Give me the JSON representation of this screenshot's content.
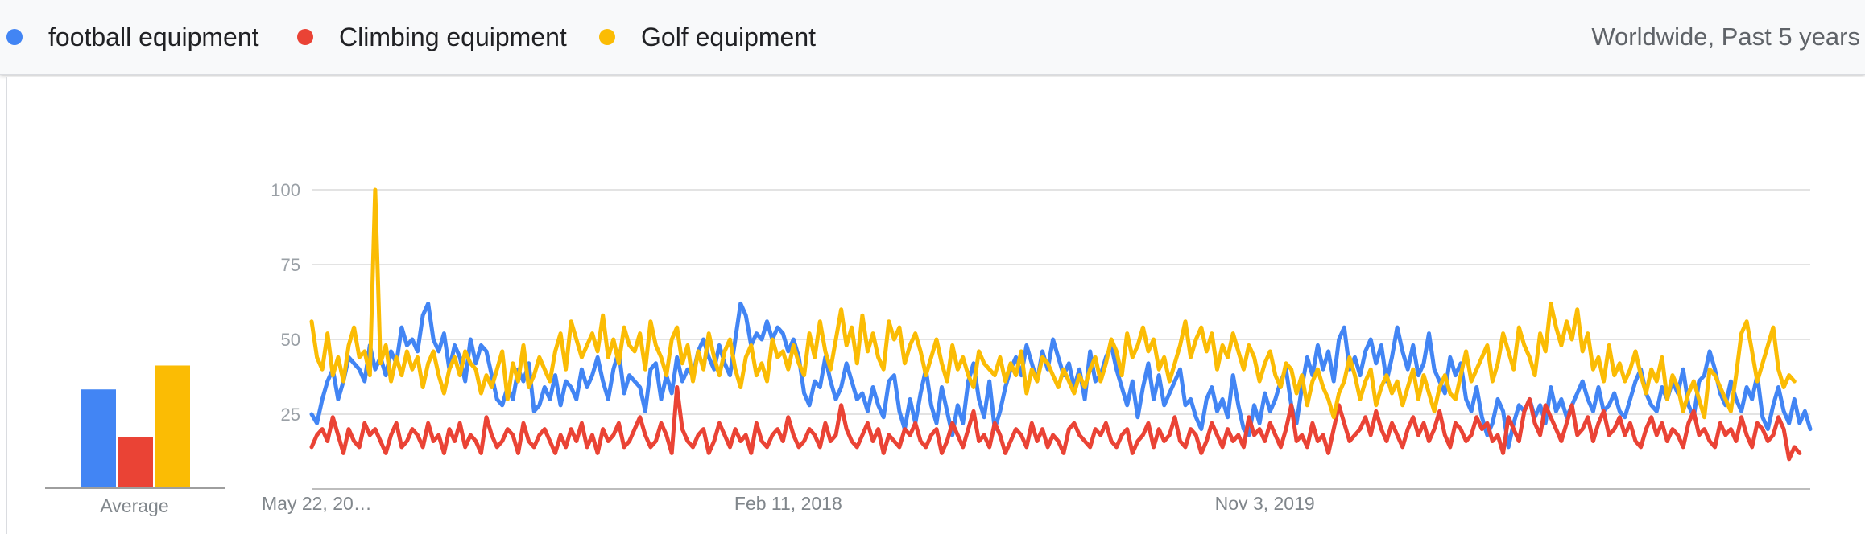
{
  "legend": {
    "items": [
      {
        "label": "football equipment",
        "color": "#4285f4"
      },
      {
        "label": "Climbing equipment",
        "color": "#ea4335"
      },
      {
        "label": "Golf equipment",
        "color": "#fbbc04"
      }
    ],
    "meta": "Worldwide, Past 5 years"
  },
  "average": {
    "label": "Average",
    "values": [
      33,
      17,
      41
    ]
  },
  "chart_data": {
    "type": "line",
    "y_ticks": [
      25,
      50,
      75,
      100
    ],
    "ylim": [
      0,
      100
    ],
    "x_ticks": [
      {
        "label": "May 22, 20…",
        "index": 0
      },
      {
        "label": "Feb 11, 2018",
        "index": 90
      },
      {
        "label": "Nov 3, 2019",
        "index": 180
      }
    ],
    "grid": true,
    "series": [
      {
        "name": "football equipment",
        "color": "#4285f4",
        "values": [
          25,
          22,
          30,
          36,
          40,
          30,
          36,
          44,
          42,
          40,
          36,
          48,
          40,
          44,
          38,
          46,
          42,
          54,
          48,
          50,
          46,
          58,
          62,
          50,
          46,
          52,
          40,
          48,
          44,
          36,
          50,
          42,
          48,
          46,
          38,
          30,
          28,
          34,
          30,
          40,
          36,
          42,
          26,
          28,
          34,
          30,
          38,
          28,
          36,
          34,
          30,
          40,
          34,
          38,
          44,
          36,
          30,
          40,
          46,
          32,
          38,
          36,
          34,
          26,
          40,
          42,
          30,
          38,
          32,
          44,
          36,
          40,
          38,
          46,
          50,
          44,
          40,
          48,
          42,
          38,
          50,
          62,
          58,
          48,
          52,
          50,
          56,
          50,
          54,
          52,
          46,
          50,
          44,
          32,
          28,
          36,
          34,
          44,
          36,
          30,
          34,
          42,
          36,
          30,
          32,
          26,
          34,
          28,
          24,
          36,
          38,
          26,
          20,
          30,
          22,
          32,
          40,
          28,
          22,
          34,
          26,
          18,
          28,
          22,
          36,
          42,
          30,
          24,
          36,
          20,
          26,
          34,
          40,
          44,
          38,
          48,
          42,
          36,
          46,
          40,
          50,
          44,
          38,
          42,
          34,
          40,
          30,
          46,
          36,
          38,
          44,
          48,
          40,
          34,
          28,
          36,
          24,
          34,
          42,
          30,
          38,
          28,
          32,
          36,
          40,
          28,
          30,
          24,
          20,
          30,
          34,
          26,
          30,
          24,
          38,
          28,
          20,
          18,
          28,
          22,
          32,
          26,
          30,
          36,
          40,
          28,
          22,
          34,
          44,
          38,
          48,
          40,
          46,
          36,
          50,
          54,
          40,
          44,
          38,
          46,
          50,
          42,
          48,
          36,
          44,
          54,
          46,
          40,
          48,
          38,
          42,
          52,
          40,
          36,
          32,
          44,
          38,
          42,
          30,
          26,
          34,
          24,
          18,
          22,
          30,
          26,
          14,
          22,
          28,
          26,
          30,
          24,
          28,
          22,
          34,
          26,
          30,
          24,
          28,
          32,
          36,
          30,
          26,
          34,
          26,
          28,
          32,
          26,
          24,
          30,
          36,
          40,
          32,
          28,
          26,
          34,
          30,
          36,
          32,
          40,
          28,
          24,
          36,
          38,
          46,
          40,
          32,
          28,
          36,
          30,
          26,
          34,
          30,
          38,
          24,
          20,
          28,
          34,
          26,
          22,
          30,
          22,
          26,
          20
        ]
      },
      {
        "name": "Climbing equipment",
        "color": "#ea4335",
        "values": [
          14,
          18,
          20,
          16,
          24,
          18,
          12,
          20,
          16,
          14,
          22,
          18,
          20,
          16,
          12,
          18,
          22,
          14,
          16,
          20,
          18,
          14,
          22,
          16,
          18,
          12,
          20,
          16,
          22,
          14,
          18,
          16,
          12,
          24,
          18,
          14,
          16,
          20,
          18,
          12,
          22,
          16,
          14,
          18,
          20,
          16,
          12,
          18,
          14,
          20,
          16,
          22,
          14,
          18,
          12,
          20,
          16,
          18,
          22,
          14,
          16,
          20,
          24,
          18,
          14,
          16,
          22,
          18,
          12,
          34,
          20,
          16,
          14,
          18,
          20,
          12,
          16,
          22,
          18,
          14,
          20,
          16,
          18,
          12,
          22,
          16,
          14,
          18,
          20,
          16,
          24,
          18,
          14,
          16,
          20,
          18,
          14,
          22,
          16,
          18,
          28,
          20,
          16,
          14,
          18,
          22,
          16,
          20,
          12,
          18,
          16,
          14,
          20,
          18,
          22,
          16,
          14,
          18,
          20,
          12,
          16,
          22,
          18,
          14,
          20,
          26,
          16,
          18,
          14,
          22,
          18,
          12,
          16,
          20,
          18,
          14,
          22,
          16,
          20,
          14,
          18,
          16,
          12,
          20,
          22,
          18,
          16,
          14,
          20,
          18,
          22,
          16,
          14,
          18,
          20,
          12,
          16,
          18,
          22,
          14,
          20,
          16,
          18,
          24,
          16,
          14,
          20,
          18,
          12,
          16,
          22,
          18,
          14,
          20,
          16,
          18,
          14,
          24,
          18,
          20,
          16,
          22,
          18,
          14,
          20,
          28,
          16,
          18,
          14,
          22,
          16,
          18,
          12,
          20,
          28,
          22,
          16,
          18,
          20,
          24,
          18,
          26,
          20,
          16,
          22,
          18,
          14,
          20,
          24,
          18,
          22,
          16,
          20,
          26,
          18,
          14,
          22,
          20,
          16,
          18,
          24,
          20,
          22,
          16,
          18,
          12,
          24,
          20,
          16,
          26,
          30,
          22,
          18,
          28,
          24,
          20,
          16,
          22,
          28,
          18,
          20,
          24,
          16,
          22,
          26,
          18,
          20,
          24,
          18,
          22,
          16,
          14,
          20,
          24,
          18,
          22,
          16,
          20,
          18,
          14,
          22,
          26,
          18,
          20,
          16,
          14,
          22,
          18,
          20,
          16,
          24,
          18,
          14,
          22,
          20,
          16,
          18,
          24,
          20,
          10,
          14,
          12
        ]
      },
      {
        "name": "Golf equipment",
        "color": "#fbbc04",
        "values": [
          56,
          44,
          40,
          52,
          38,
          44,
          36,
          48,
          54,
          44,
          46,
          38,
          100,
          42,
          48,
          36,
          44,
          38,
          46,
          40,
          44,
          34,
          42,
          46,
          38,
          32,
          40,
          44,
          38,
          46,
          42,
          40,
          32,
          38,
          34,
          40,
          46,
          30,
          42,
          36,
          48,
          34,
          38,
          44,
          40,
          36,
          46,
          52,
          40,
          56,
          50,
          44,
          48,
          52,
          46,
          58,
          44,
          50,
          42,
          54,
          48,
          46,
          52,
          40,
          56,
          48,
          44,
          38,
          50,
          54,
          42,
          48,
          36,
          46,
          40,
          52,
          44,
          38,
          46,
          50,
          40,
          34,
          44,
          48,
          38,
          42,
          36,
          50,
          44,
          46,
          40,
          48,
          42,
          38,
          52,
          44,
          56,
          46,
          40,
          50,
          60,
          48,
          54,
          42,
          58,
          46,
          52,
          44,
          40,
          56,
          50,
          54,
          42,
          48,
          52,
          46,
          38,
          44,
          50,
          42,
          36,
          48,
          40,
          44,
          38,
          34,
          46,
          42,
          40,
          38,
          44,
          36,
          42,
          38,
          46,
          32,
          40,
          36,
          44,
          42,
          38,
          34,
          40,
          36,
          32,
          38,
          34,
          40,
          44,
          36,
          42,
          50,
          46,
          38,
          52,
          44,
          48,
          54,
          46,
          50,
          40,
          44,
          36,
          42,
          48,
          56,
          44,
          50,
          54,
          46,
          52,
          40,
          48,
          44,
          52,
          46,
          40,
          48,
          44,
          36,
          42,
          46,
          38,
          34,
          42,
          40,
          32,
          38,
          28,
          36,
          40,
          34,
          30,
          24,
          32,
          36,
          44,
          38,
          30,
          36,
          40,
          28,
          34,
          38,
          32,
          36,
          28,
          34,
          40,
          30,
          38,
          32,
          26,
          34,
          38,
          32,
          30,
          38,
          46,
          36,
          40,
          44,
          48,
          36,
          42,
          52,
          46,
          40,
          54,
          48,
          44,
          38,
          52,
          46,
          62,
          54,
          48,
          56,
          50,
          60,
          46,
          52,
          40,
          44,
          36,
          48,
          38,
          42,
          36,
          40,
          46,
          38,
          32,
          40,
          36,
          44,
          30,
          38,
          34,
          26,
          32,
          36,
          30,
          24,
          40,
          38,
          34,
          30,
          26,
          38,
          52,
          56,
          46,
          36,
          42,
          48,
          54,
          40,
          34,
          38,
          36
        ]
      }
    ]
  }
}
